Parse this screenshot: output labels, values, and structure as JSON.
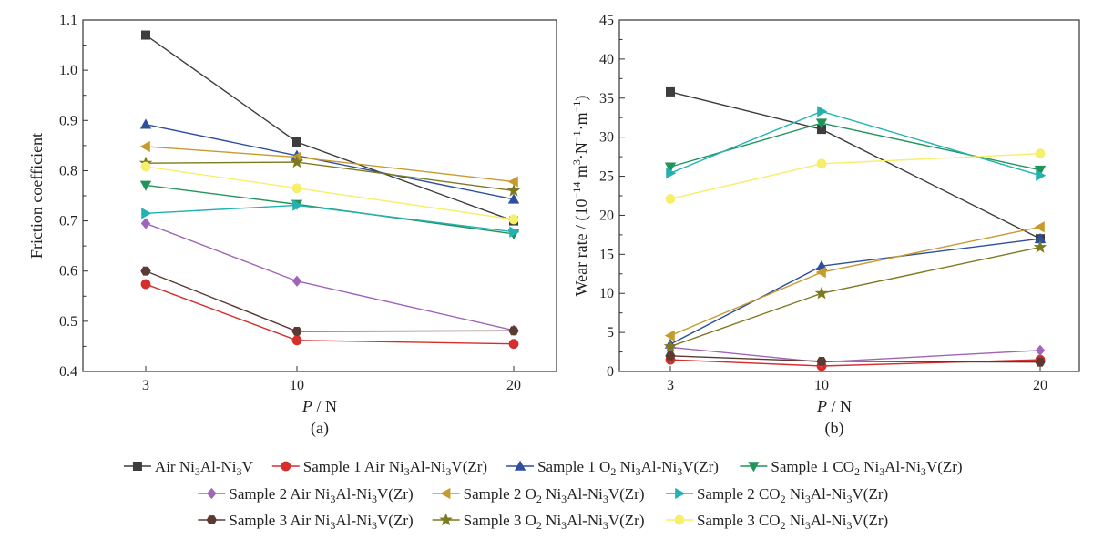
{
  "chart_data": [
    {
      "type": "line",
      "panel_label": "(a)",
      "title": "",
      "xlabel_var": "P",
      "xlabel_unit": " / N",
      "ylabel": "Friction coefficient",
      "x": [
        3,
        10,
        20
      ],
      "x_tick_labels": [
        "3",
        "10",
        "20"
      ],
      "ylim": [
        0.4,
        1.1
      ],
      "y_ticks": [
        "0.4",
        "0.5",
        "0.6",
        "0.7",
        "0.8",
        "0.9",
        "1.0",
        "1.1"
      ],
      "series": [
        {
          "name": "Air Ni3Al-Ni3V",
          "values": [
            1.07,
            0.857,
            0.7
          ]
        },
        {
          "name": "Sample 1 Air Ni3Al-Ni3V(Zr)",
          "values": [
            0.574,
            0.462,
            0.455
          ]
        },
        {
          "name": "Sample 1 O2 Ni3Al-Ni3V(Zr)",
          "values": [
            0.892,
            0.83,
            0.743
          ]
        },
        {
          "name": "Sample 1 CO2 Ni3Al-Ni3V(Zr)",
          "values": [
            0.771,
            0.733,
            0.674
          ]
        },
        {
          "name": "Sample 2 Air Ni3Al-Ni3V(Zr)",
          "values": [
            0.695,
            0.58,
            0.482
          ]
        },
        {
          "name": "Sample 2 O2 Ni3Al-Ni3V(Zr)",
          "values": [
            0.848,
            0.827,
            0.778
          ]
        },
        {
          "name": "Sample 2 CO2 Ni3Al-Ni3V(Zr)",
          "values": [
            0.715,
            0.731,
            0.678
          ]
        },
        {
          "name": "Sample 3 Air Ni3Al-Ni3V(Zr)",
          "values": [
            0.6,
            0.48,
            0.481
          ]
        },
        {
          "name": "Sample 3 O2 Ni3Al-Ni3V(Zr)",
          "values": [
            0.815,
            0.817,
            0.76
          ]
        },
        {
          "name": "Sample 3 CO2 Ni3Al-Ni3V(Zr)",
          "values": [
            0.808,
            0.765,
            0.703
          ]
        }
      ]
    },
    {
      "type": "line",
      "panel_label": "(b)",
      "title": "",
      "xlabel_var": "P",
      "xlabel_unit": " / N",
      "ylabel": "Wear rate / (10−14 m3·N−1·m−1)",
      "x": [
        3,
        10,
        20
      ],
      "x_tick_labels": [
        "3",
        "10",
        "20"
      ],
      "ylim": [
        0,
        45
      ],
      "y_ticks": [
        "0",
        "5",
        "10",
        "15",
        "20",
        "25",
        "30",
        "35",
        "40",
        "45"
      ],
      "series": [
        {
          "name": "Air Ni3Al-Ni3V",
          "values": [
            35.8,
            31.0,
            17.0
          ]
        },
        {
          "name": "Sample 1 Air Ni3Al-Ni3V(Zr)",
          "values": [
            1.5,
            0.7,
            1.5
          ]
        },
        {
          "name": "Sample 1 O2 Ni3Al-Ni3V(Zr)",
          "values": [
            3.5,
            13.5,
            17.0
          ]
        },
        {
          "name": "Sample 1 CO2 Ni3Al-Ni3V(Zr)",
          "values": [
            26.2,
            31.8,
            25.8
          ]
        },
        {
          "name": "Sample 2 Air Ni3Al-Ni3V(Zr)",
          "values": [
            3.1,
            1.2,
            2.7
          ]
        },
        {
          "name": "Sample 2 O2 Ni3Al-Ni3V(Zr)",
          "values": [
            4.6,
            12.7,
            18.5
          ]
        },
        {
          "name": "Sample 2 CO2 Ni3Al-Ni3V(Zr)",
          "values": [
            25.4,
            33.3,
            25.1
          ]
        },
        {
          "name": "Sample 3 Air Ni3Al-Ni3V(Zr)",
          "values": [
            2.0,
            1.3,
            1.2
          ]
        },
        {
          "name": "Sample 3 O2 Ni3Al-Ni3V(Zr)",
          "values": [
            3.2,
            10.0,
            15.9
          ]
        },
        {
          "name": "Sample 3 CO2 Ni3Al-Ni3V(Zr)",
          "values": [
            22.1,
            26.6,
            27.9
          ]
        }
      ]
    }
  ],
  "series_styles": [
    {
      "color": "#3d3d3d",
      "marker": "square"
    },
    {
      "color": "#d62d2d",
      "marker": "circle"
    },
    {
      "color": "#2e4f9e",
      "marker": "triangle-up"
    },
    {
      "color": "#21945a",
      "marker": "triangle-down"
    },
    {
      "color": "#a064b8",
      "marker": "diamond"
    },
    {
      "color": "#c79a2e",
      "marker": "triangle-left"
    },
    {
      "color": "#22b2b2",
      "marker": "triangle-right"
    },
    {
      "color": "#5b3a32",
      "marker": "hexagon"
    },
    {
      "color": "#7c7a1f",
      "marker": "star"
    },
    {
      "color": "#f7ef6a",
      "marker": "circle"
    }
  ],
  "legend": [
    [
      {
        "series": 0,
        "parts": [
          [
            "",
            "Air Ni"
          ],
          [
            "sub",
            "3"
          ],
          [
            "",
            "Al-Ni"
          ],
          [
            "sub",
            "3"
          ],
          [
            "",
            "V"
          ]
        ]
      },
      {
        "series": 1,
        "parts": [
          [
            "",
            "Sample 1 Air Ni"
          ],
          [
            "sub",
            "3"
          ],
          [
            "",
            "Al-Ni"
          ],
          [
            "sub",
            "3"
          ],
          [
            "",
            "V(Zr)"
          ]
        ]
      },
      {
        "series": 2,
        "parts": [
          [
            "",
            "Sample 1 O"
          ],
          [
            "sub",
            "2"
          ],
          [
            "",
            " Ni"
          ],
          [
            "sub",
            "3"
          ],
          [
            "",
            "Al-Ni"
          ],
          [
            "sub",
            "3"
          ],
          [
            "",
            "V(Zr)"
          ]
        ]
      },
      {
        "series": 3,
        "parts": [
          [
            "",
            "Sample 1 CO"
          ],
          [
            "sub",
            "2"
          ],
          [
            "",
            " Ni"
          ],
          [
            "sub",
            "3"
          ],
          [
            "",
            "Al-Ni"
          ],
          [
            "sub",
            "3"
          ],
          [
            "",
            "V(Zr)"
          ]
        ]
      }
    ],
    [
      {
        "series": 4,
        "parts": [
          [
            "",
            "Sample 2 Air Ni"
          ],
          [
            "sub",
            "3"
          ],
          [
            "",
            "Al-Ni"
          ],
          [
            "sub",
            "3"
          ],
          [
            "",
            "V(Zr)"
          ]
        ]
      },
      {
        "series": 5,
        "parts": [
          [
            "",
            "Sample 2 O"
          ],
          [
            "sub",
            "2"
          ],
          [
            "",
            " Ni"
          ],
          [
            "sub",
            "3"
          ],
          [
            "",
            "Al-Ni"
          ],
          [
            "sub",
            "3"
          ],
          [
            "",
            "V(Zr)"
          ]
        ]
      },
      {
        "series": 6,
        "parts": [
          [
            "",
            "Sample 2 CO"
          ],
          [
            "sub",
            "2"
          ],
          [
            "",
            " Ni"
          ],
          [
            "sub",
            "3"
          ],
          [
            "",
            "Al-Ni"
          ],
          [
            "sub",
            "3"
          ],
          [
            "",
            "V(Zr)"
          ]
        ]
      }
    ],
    [
      {
        "series": 7,
        "parts": [
          [
            "",
            "Sample 3 Air Ni"
          ],
          [
            "sub",
            "3"
          ],
          [
            "",
            "Al-Ni"
          ],
          [
            "sub",
            "3"
          ],
          [
            "",
            "V(Zr)"
          ]
        ]
      },
      {
        "series": 8,
        "parts": [
          [
            "",
            "Sample 3 O"
          ],
          [
            "sub",
            "2"
          ],
          [
            "",
            " Ni"
          ],
          [
            "sub",
            "3"
          ],
          [
            "",
            "Al-Ni"
          ],
          [
            "sub",
            "3"
          ],
          [
            "",
            "V(Zr)"
          ]
        ]
      },
      {
        "series": 9,
        "parts": [
          [
            "",
            "Sample 3 CO"
          ],
          [
            "sub",
            "2"
          ],
          [
            "",
            " Ni"
          ],
          [
            "sub",
            "3"
          ],
          [
            "",
            "Al-Ni"
          ],
          [
            "sub",
            "3"
          ],
          [
            "",
            "V(Zr)"
          ]
        ]
      }
    ]
  ],
  "wear_ylabel_parts": [
    [
      "",
      "Wear rate / (10"
    ],
    [
      "sup",
      "−14"
    ],
    [
      "",
      " m"
    ],
    [
      "sup",
      "3"
    ],
    [
      "",
      "·N"
    ],
    [
      "sup",
      "−1"
    ],
    [
      "",
      "·m"
    ],
    [
      "sup",
      "−1"
    ],
    [
      "",
      ")"
    ]
  ]
}
